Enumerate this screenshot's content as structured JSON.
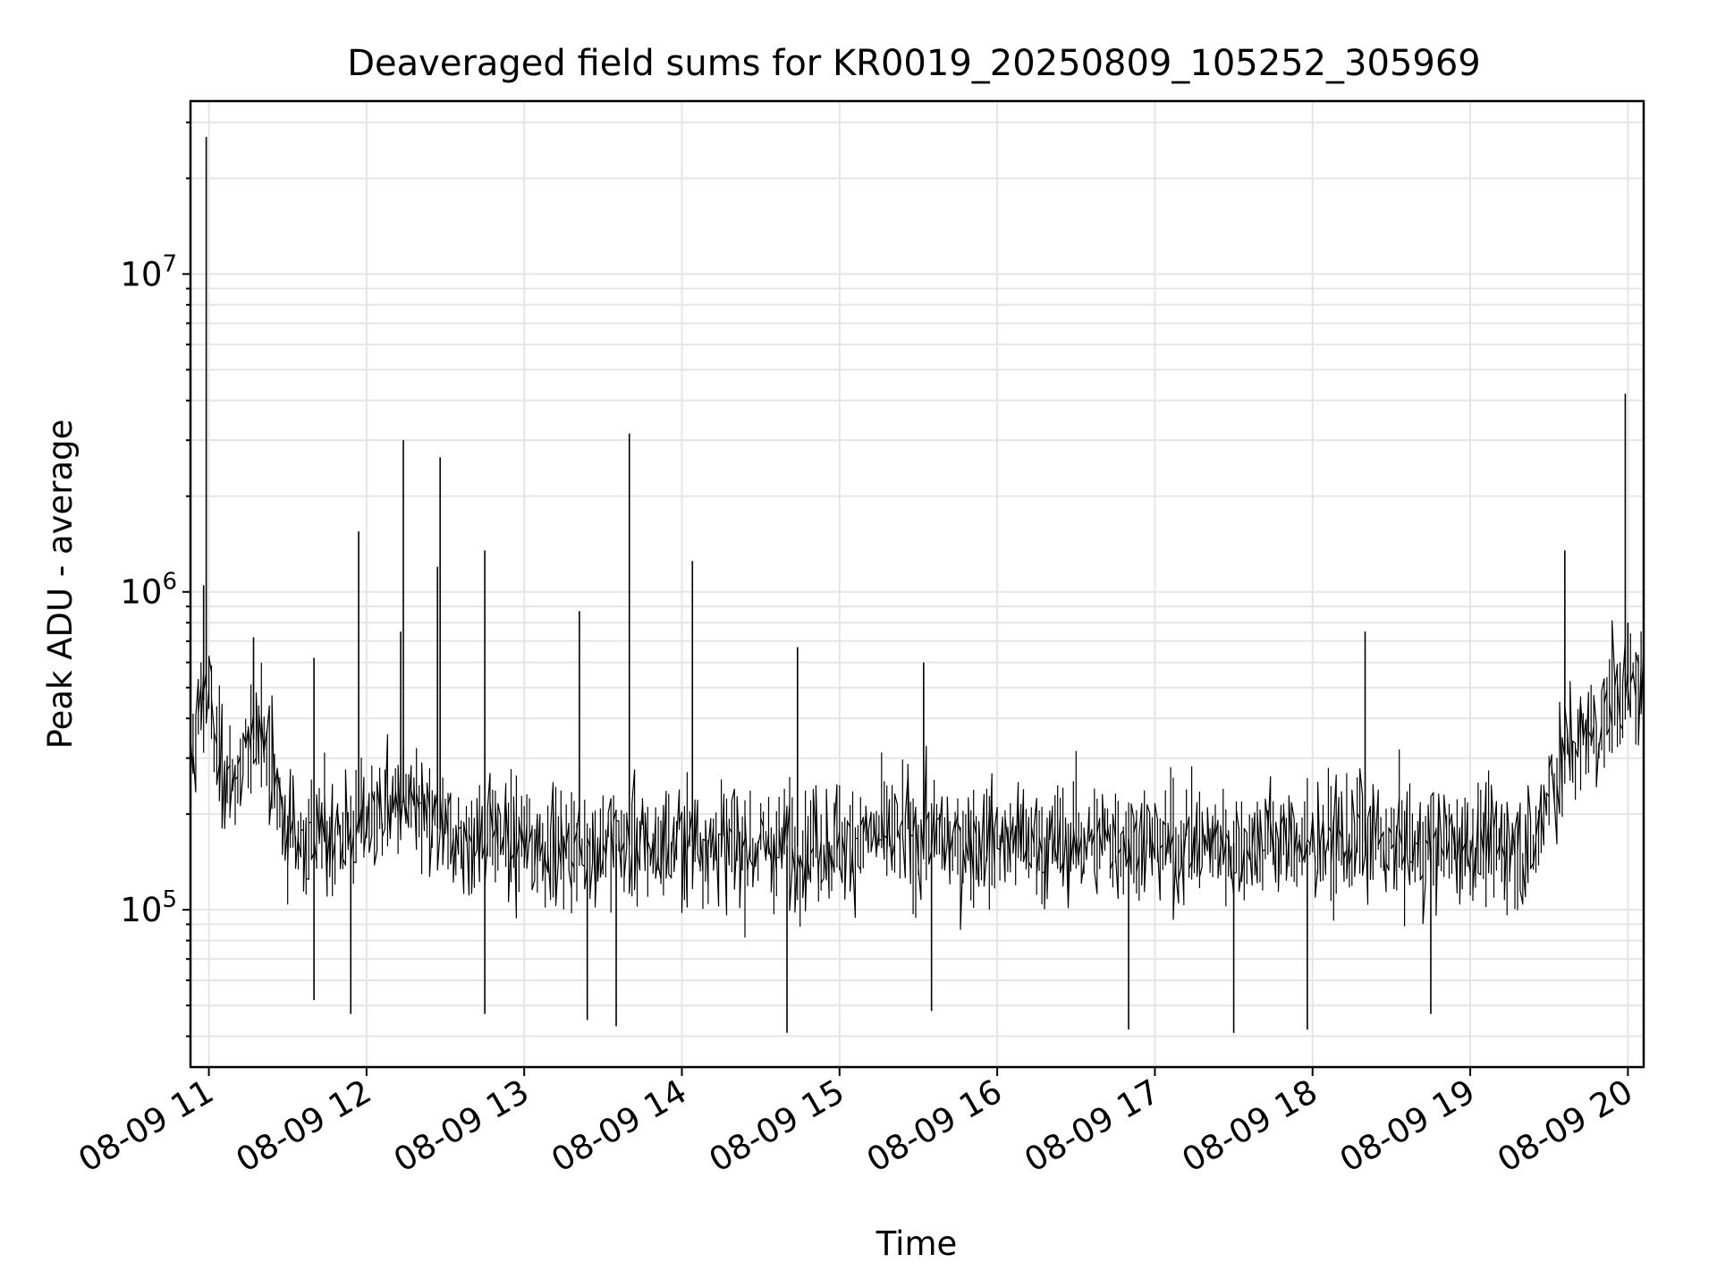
{
  "chart_data": {
    "type": "line",
    "title": "Deaveraged field sums for KR0019_20250809_105252_305969",
    "xlabel": "Time",
    "ylabel": "Peak ADU - average",
    "yscale": "log",
    "ylim": [
      32000,
      35000000
    ],
    "xlim": [
      "2025-08-09 10:53",
      "2025-08-09 20:06"
    ],
    "grid": true,
    "y_major_ticks": [
      {
        "value": 100000,
        "base": "10",
        "exp": "5"
      },
      {
        "value": 1000000,
        "base": "10",
        "exp": "6"
      },
      {
        "value": 10000000,
        "base": "10",
        "exp": "7"
      }
    ],
    "x_ticks": [
      {
        "value": "2025-08-09 11:00",
        "label": "08-09 11"
      },
      {
        "value": "2025-08-09 12:00",
        "label": "08-09 12"
      },
      {
        "value": "2025-08-09 13:00",
        "label": "08-09 13"
      },
      {
        "value": "2025-08-09 14:00",
        "label": "08-09 14"
      },
      {
        "value": "2025-08-09 15:00",
        "label": "08-09 15"
      },
      {
        "value": "2025-08-09 16:00",
        "label": "08-09 16"
      },
      {
        "value": "2025-08-09 17:00",
        "label": "08-09 17"
      },
      {
        "value": "2025-08-09 18:00",
        "label": "08-09 18"
      },
      {
        "value": "2025-08-09 19:00",
        "label": "08-09 19"
      },
      {
        "value": "2025-08-09 20:00",
        "label": "08-09 20"
      }
    ],
    "line_color": "#000000",
    "grid_color": "#e5e5e5",
    "series": [
      {
        "x": [
          "2025-08-09 10:53",
          "2025-08-09 10:56",
          "2025-08-09 10:59",
          "2025-08-09 11:00",
          "2025-08-09 11:05",
          "2025-08-09 11:10",
          "2025-08-09 11:15",
          "2025-08-09 11:20",
          "2025-08-09 11:25",
          "2025-08-09 11:30",
          "2025-08-09 11:35",
          "2025-08-09 11:40",
          "2025-08-09 11:45",
          "2025-08-09 11:50",
          "2025-08-09 11:55",
          "2025-08-09 12:00",
          "2025-08-09 12:05",
          "2025-08-09 12:10",
          "2025-08-09 12:15",
          "2025-08-09 12:20",
          "2025-08-09 12:25",
          "2025-08-09 12:30",
          "2025-08-09 12:35",
          "2025-08-09 12:40",
          "2025-08-09 12:45",
          "2025-08-09 12:50",
          "2025-08-09 12:55",
          "2025-08-09 13:00",
          "2025-08-09 13:10",
          "2025-08-09 13:20",
          "2025-08-09 13:30",
          "2025-08-09 13:40",
          "2025-08-09 13:50",
          "2025-08-09 14:00",
          "2025-08-09 14:15",
          "2025-08-09 14:30",
          "2025-08-09 14:45",
          "2025-08-09 15:00",
          "2025-08-09 15:15",
          "2025-08-09 15:30",
          "2025-08-09 15:45",
          "2025-08-09 16:00",
          "2025-08-09 16:15",
          "2025-08-09 16:30",
          "2025-08-09 16:45",
          "2025-08-09 17:00",
          "2025-08-09 17:15",
          "2025-08-09 17:30",
          "2025-08-09 17:45",
          "2025-08-09 18:00",
          "2025-08-09 18:15",
          "2025-08-09 18:30",
          "2025-08-09 18:45",
          "2025-08-09 19:00",
          "2025-08-09 19:15",
          "2025-08-09 19:25",
          "2025-08-09 19:30",
          "2025-08-09 19:40",
          "2025-08-09 19:50",
          "2025-08-09 20:00",
          "2025-08-09 20:06"
        ],
        "values": [
          300000,
          380000,
          500000,
          480000,
          280000,
          250000,
          300000,
          420000,
          260000,
          180000,
          170000,
          165000,
          175000,
          170000,
          180000,
          185000,
          200000,
          210000,
          220000,
          190000,
          185000,
          175000,
          170000,
          165000,
          170000,
          175000,
          160000,
          165000,
          160000,
          158000,
          162000,
          160000,
          158000,
          165000,
          162000,
          160000,
          158000,
          165000,
          170000,
          168000,
          165000,
          162000,
          160000,
          165000,
          168000,
          165000,
          160000,
          162000,
          165000,
          160000,
          165000,
          162000,
          158000,
          160000,
          158000,
          150000,
          250000,
          330000,
          380000,
          520000,
          500000
        ]
      }
    ],
    "spikes": [
      {
        "x": "2025-08-09 10:59",
        "value": 27000000
      },
      {
        "x": "2025-08-09 10:58",
        "value": 1050000
      },
      {
        "x": "2025-08-09 11:17",
        "value": 720000
      },
      {
        "x": "2025-08-09 11:40",
        "value": 620000
      },
      {
        "x": "2025-08-09 11:57",
        "value": 1550000
      },
      {
        "x": "2025-08-09 12:13",
        "value": 750000
      },
      {
        "x": "2025-08-09 12:14",
        "value": 3000000
      },
      {
        "x": "2025-08-09 12:28",
        "value": 2650000
      },
      {
        "x": "2025-08-09 12:27",
        "value": 1200000
      },
      {
        "x": "2025-08-09 12:45",
        "value": 1350000
      },
      {
        "x": "2025-08-09 13:21",
        "value": 870000
      },
      {
        "x": "2025-08-09 13:40",
        "value": 3150000
      },
      {
        "x": "2025-08-09 14:04",
        "value": 1250000
      },
      {
        "x": "2025-08-09 14:44",
        "value": 670000
      },
      {
        "x": "2025-08-09 15:32",
        "value": 600000
      },
      {
        "x": "2025-08-09 18:20",
        "value": 750000
      },
      {
        "x": "2025-08-09 19:36",
        "value": 1350000
      },
      {
        "x": "2025-08-09 19:59",
        "value": 4200000
      },
      {
        "x": "2025-08-09 20:00",
        "value": 800000
      }
    ],
    "dips": [
      {
        "x": "2025-08-09 11:40",
        "value": 52000
      },
      {
        "x": "2025-08-09 11:54",
        "value": 47000
      },
      {
        "x": "2025-08-09 12:45",
        "value": 47000
      },
      {
        "x": "2025-08-09 13:24",
        "value": 45000
      },
      {
        "x": "2025-08-09 13:35",
        "value": 43000
      },
      {
        "x": "2025-08-09 14:40",
        "value": 41000
      },
      {
        "x": "2025-08-09 15:35",
        "value": 48000
      },
      {
        "x": "2025-08-09 16:50",
        "value": 42000
      },
      {
        "x": "2025-08-09 17:30",
        "value": 41000
      },
      {
        "x": "2025-08-09 17:58",
        "value": 42000
      },
      {
        "x": "2025-08-09 18:45",
        "value": 47000
      }
    ]
  }
}
